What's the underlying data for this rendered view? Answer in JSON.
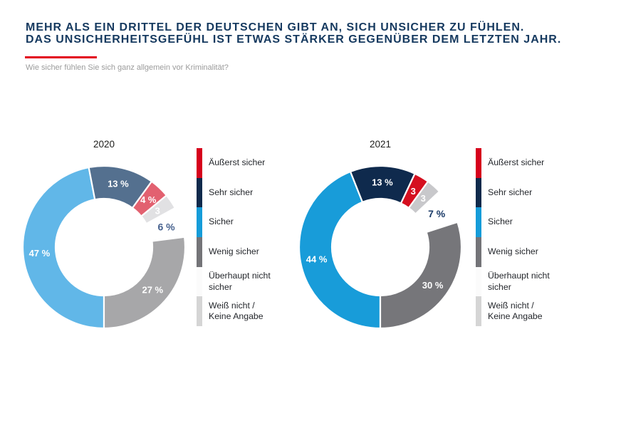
{
  "header": {
    "title_line1": "MEHR ALS EIN DRITTEL DER DEUTSCHEN GIBT AN, SICH UNSICHER ZU FÜHLEN.",
    "title_line2": "DAS UNSICHERHEITSGEFÜHL IST ETWAS STÄRKER GEGENÜBER DEM LETZTEN JAHR.",
    "subtitle": "Wie sicher fühlen Sie sich ganz allgemein vor Kriminalität?",
    "title_color": "#15395F",
    "accent_color": "#E2001A"
  },
  "chart_data": [
    {
      "type": "pie",
      "variant": "donut",
      "title": "2020",
      "start_angle": 180,
      "outer_radius": 114,
      "inner_radius": 68,
      "segments": [
        {
          "name": "Sicher",
          "value": 47,
          "label": "47 %",
          "color": "#61B7E8",
          "label_color": "#FFFFFF",
          "label_pos": "inside"
        },
        {
          "name": "Sehr sicher",
          "value": 13,
          "label": "13 %",
          "color": "#54708F",
          "label_color": "#FFFFFF",
          "label_pos": "inside"
        },
        {
          "name": "Äußerst sicher",
          "value": 4,
          "label": "4 %",
          "color": "#E26170",
          "label_color": "#FFFFFF",
          "label_pos": "inside"
        },
        {
          "name": "Weiß nicht / Keine Angabe",
          "value": 3,
          "label": "3",
          "color": "#E1E1E3",
          "label_color": "#FFFFFF",
          "label_pos": "inside"
        },
        {
          "name": "Überhaupt nicht sicher",
          "value": 6,
          "label": "6 %",
          "color": "#FFFFFF",
          "label_color": "#46618E",
          "label_pos": "outside"
        },
        {
          "name": "Wenig sicher",
          "value": 27,
          "label": "27 %",
          "color": "#A7A7A9",
          "label_color": "#FFFFFF",
          "label_pos": "inside"
        }
      ]
    },
    {
      "type": "pie",
      "variant": "donut",
      "title": "2021",
      "start_angle": 180,
      "outer_radius": 114,
      "inner_radius": 68,
      "segments": [
        {
          "name": "Sicher",
          "value": 44,
          "label": "44 %",
          "color": "#189CD9",
          "label_color": "#FFFFFF",
          "label_pos": "inside"
        },
        {
          "name": "Sehr sicher",
          "value": 13,
          "label": "13 %",
          "color": "#0F2A4D",
          "label_color": "#FFFFFF",
          "label_pos": "inside"
        },
        {
          "name": "Äußerst sicher",
          "value": 3,
          "label": "3",
          "color": "#D50F1F",
          "label_color": "#FFFFFF",
          "label_pos": "inside"
        },
        {
          "name": "Weiß nicht / Keine Angabe",
          "value": 3,
          "label": "3",
          "color": "#C8C8CB",
          "label_color": "#FFFFFF",
          "label_pos": "inside"
        },
        {
          "name": "Überhaupt nicht sicher",
          "value": 7,
          "label": "7 %",
          "color": "#FFFFFF",
          "label_color": "#1B3B68",
          "label_pos": "outside"
        },
        {
          "name": "Wenig sicher",
          "value": 30,
          "label": "30 %",
          "color": "#76767A",
          "label_color": "#FFFFFF",
          "label_pos": "inside"
        }
      ]
    }
  ],
  "legend": {
    "items": [
      {
        "label": "Äußerst sicher",
        "color": "#D6001C"
      },
      {
        "label": "Sehr sicher",
        "color": "#0F2A4C"
      },
      {
        "label": "Sicher",
        "color": "#159CD9"
      },
      {
        "label": "Wenig sicher",
        "color": "#747478"
      },
      {
        "label": "Überhaupt nicht\nsicher",
        "color": "#FBFBFB"
      },
      {
        "label": "Weiß nicht /\nKeine Angabe",
        "color": "#D5D5D5"
      }
    ]
  }
}
